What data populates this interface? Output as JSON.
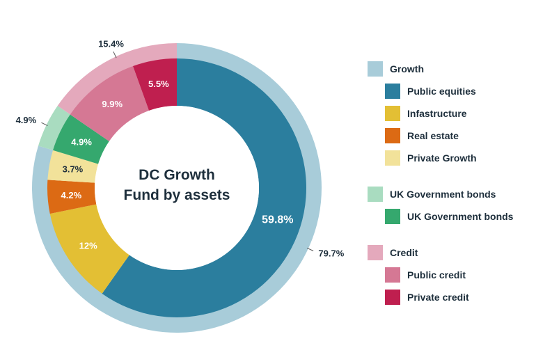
{
  "chart_data": {
    "type": "pie",
    "title": "DC Growth Fund by assets",
    "title_lines": [
      "DC Growth",
      "Fund by assets"
    ],
    "outer_ring": [
      {
        "name": "Growth",
        "value": 79.7,
        "label": "79.7%",
        "color": "#a8ccd9"
      },
      {
        "name": "UK Government bonds",
        "value": 4.9,
        "label": "4.9%",
        "color": "#a9dcc0"
      },
      {
        "name": "Credit",
        "value": 15.4,
        "label": "15.4%",
        "color": "#e4a9bc"
      }
    ],
    "inner_ring": [
      {
        "name": "Public equities",
        "value": 59.8,
        "label": "59.8%",
        "color": "#2b7e9e"
      },
      {
        "name": "Infastructure",
        "value": 12,
        "label": "12%",
        "color": "#e3bf34"
      },
      {
        "name": "Real estate",
        "value": 4.2,
        "label": "4.2%",
        "color": "#dc6a14"
      },
      {
        "name": "Private Growth",
        "value": 3.7,
        "label": "3.7%",
        "color": "#f2e29a"
      },
      {
        "name": "UK Government bonds",
        "value": 4.9,
        "label": "4.9%",
        "color": "#35a86e"
      },
      {
        "name": "Public credit",
        "value": 9.9,
        "label": "9.9%",
        "color": "#d57894"
      },
      {
        "name": "Private credit",
        "value": 5.5,
        "label": "5.5%",
        "color": "#bf1f4f"
      }
    ],
    "legend": [
      {
        "label": "Growth",
        "color": "#a8ccd9",
        "level": 0
      },
      {
        "label": "Public equities",
        "color": "#2b7e9e",
        "level": 1
      },
      {
        "label": "Infastructure",
        "color": "#e3bf34",
        "level": 1
      },
      {
        "label": "Real estate",
        "color": "#dc6a14",
        "level": 1
      },
      {
        "label": "Private Growth",
        "color": "#f2e29a",
        "level": 1
      },
      {
        "label": "UK Government bonds",
        "color": "#a9dcc0",
        "level": 0
      },
      {
        "label": "UK Government bonds",
        "color": "#35a86e",
        "level": 1
      },
      {
        "label": "Credit",
        "color": "#e4a9bc",
        "level": 0
      },
      {
        "label": "Public credit",
        "color": "#d57894",
        "level": 1
      },
      {
        "label": "Private credit",
        "color": "#bf1f4f",
        "level": 1
      }
    ],
    "legend_placement": "right"
  }
}
